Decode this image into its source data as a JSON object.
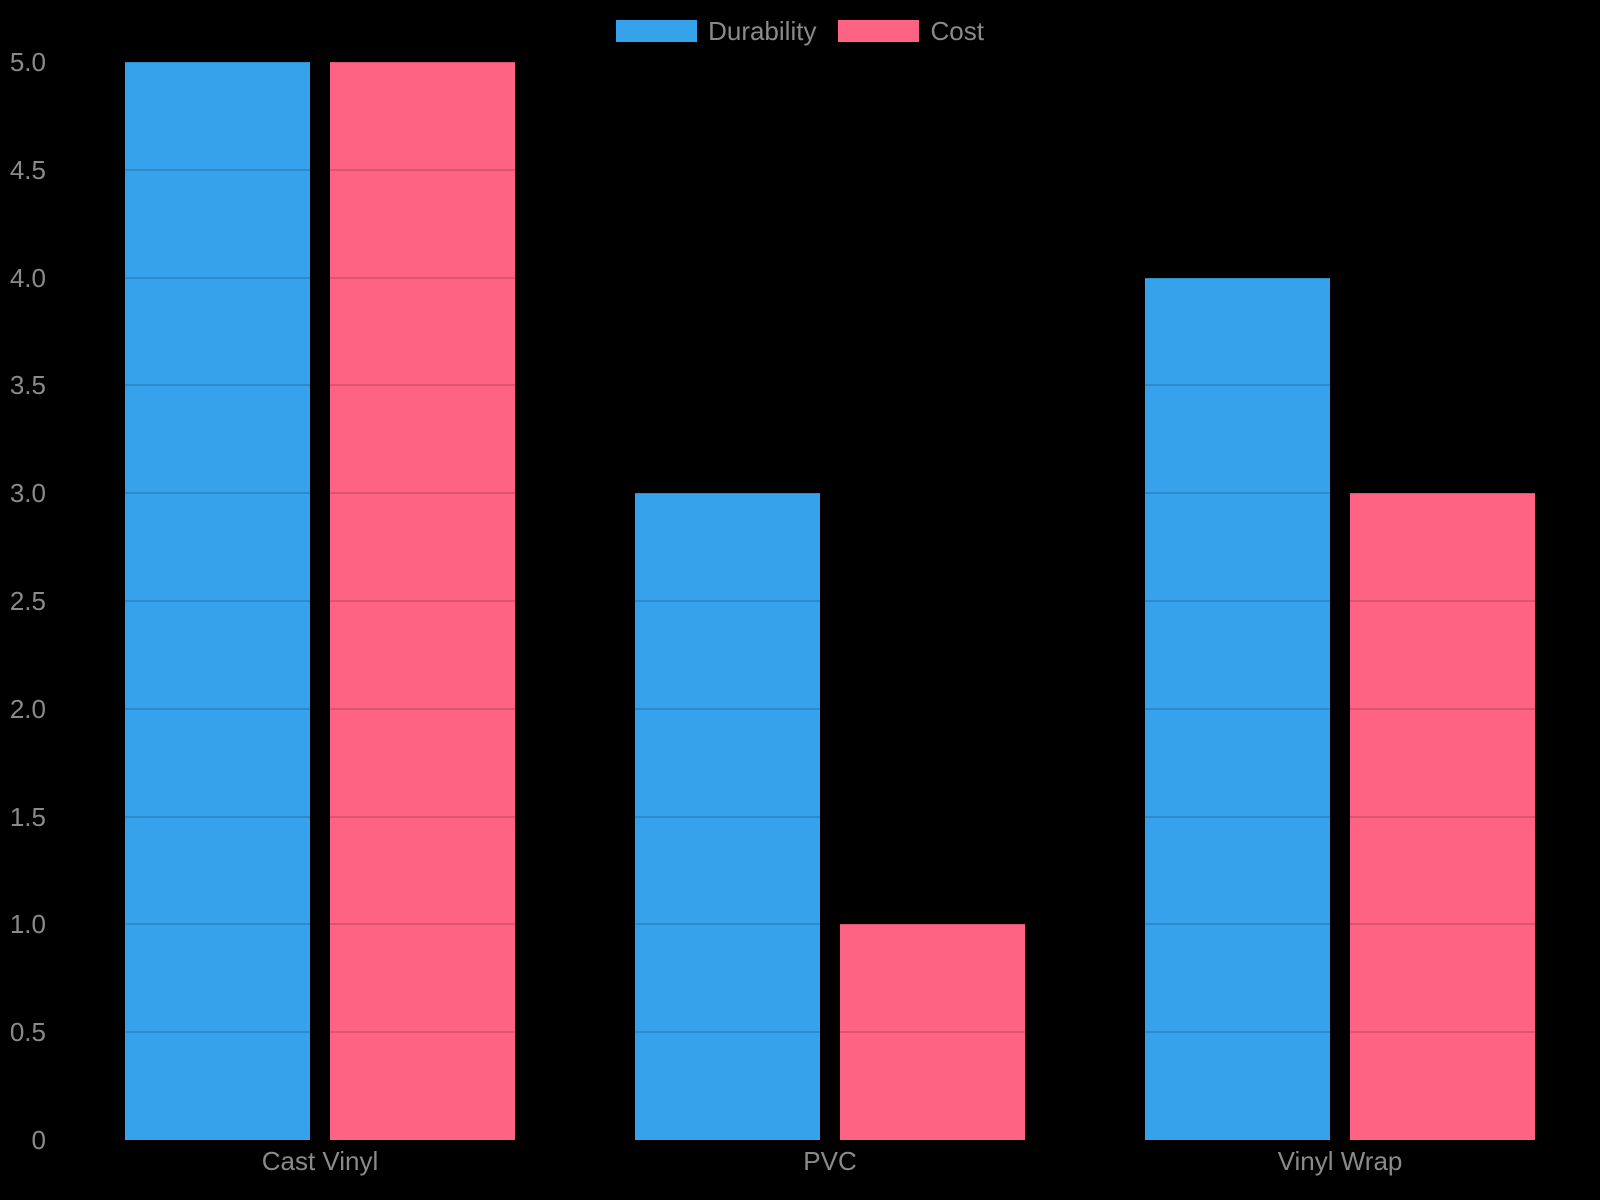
{
  "chart_data": {
    "type": "bar",
    "categories": [
      "Cast Vinyl",
      "PVC",
      "Vinyl Wrap"
    ],
    "series": [
      {
        "name": "Durability",
        "color": "#36A2EB",
        "values": [
          5,
          3,
          4
        ]
      },
      {
        "name": "Cost",
        "color": "#FF6384",
        "values": [
          5,
          1,
          3
        ]
      }
    ],
    "title": "",
    "xlabel": "",
    "ylabel": "",
    "ylim": [
      0,
      5
    ],
    "ytick_step": 0.5,
    "ytick_labels": [
      "0",
      "0.5",
      "1.0",
      "1.5",
      "2.0",
      "2.5",
      "3.0",
      "3.5",
      "4.0",
      "4.5",
      "5.0"
    ],
    "grid": true,
    "legend_position": "top-center",
    "background": "#000000",
    "text_color": "#8a8a8a"
  }
}
